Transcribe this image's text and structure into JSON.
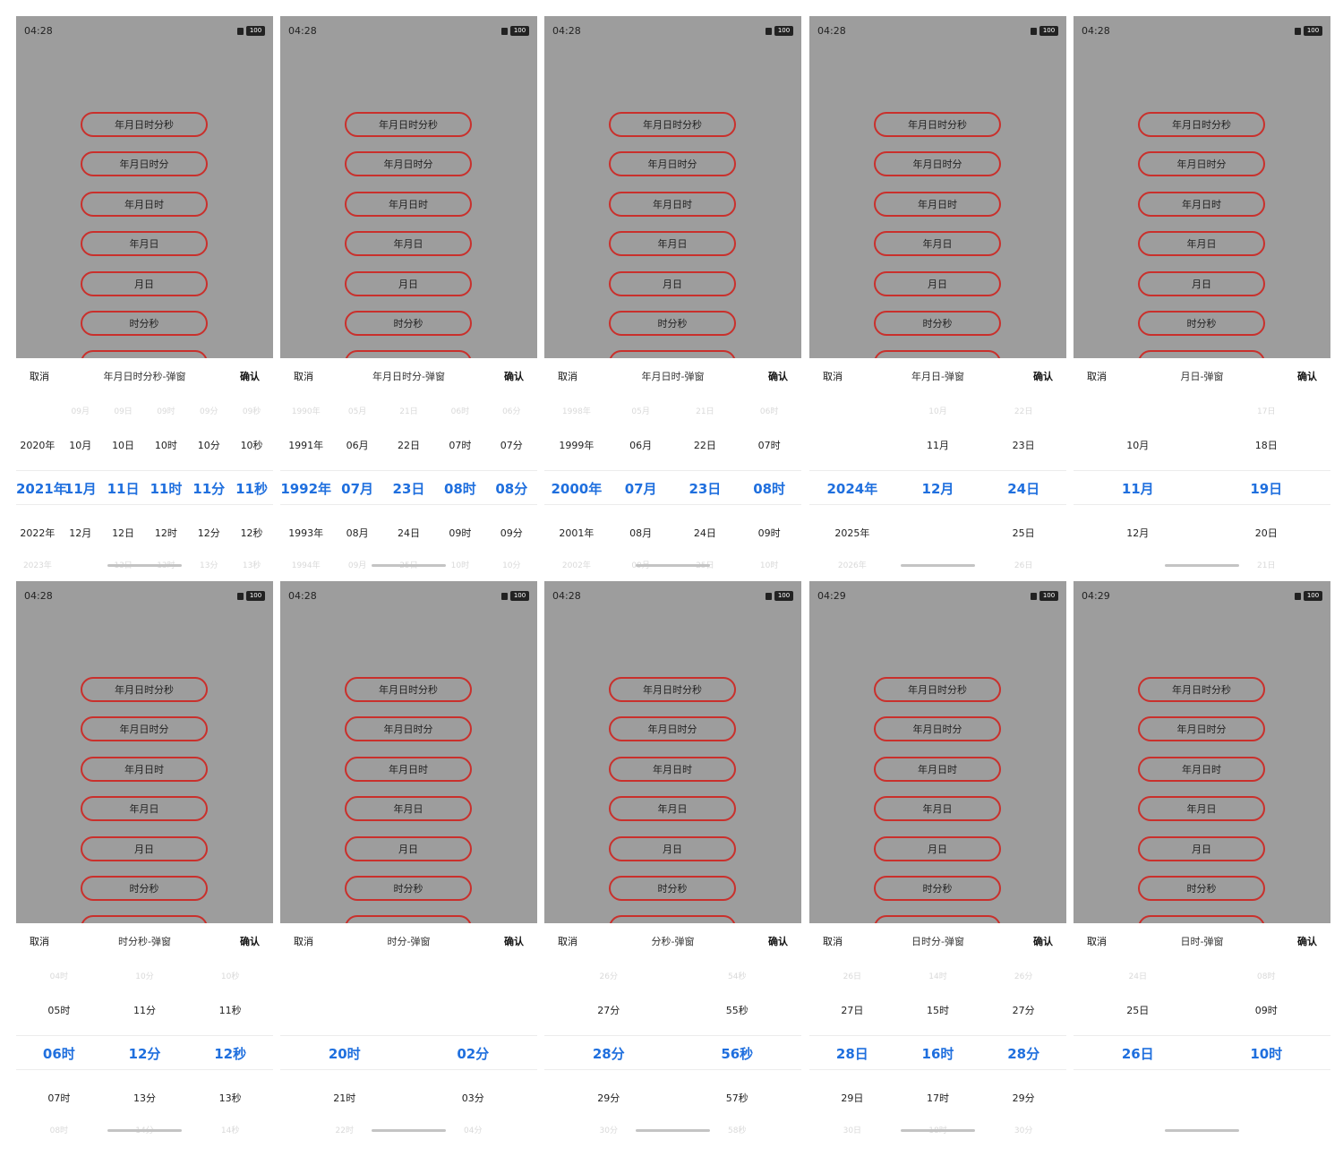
{
  "status_bar": {
    "sim_icon": "sim-icon",
    "battery": "100"
  },
  "menu_buttons": [
    "年月日时分秒",
    "年月日时分",
    "年月日时",
    "年月日",
    "月日",
    "时分秒",
    ""
  ],
  "header": {
    "cancel": "取消",
    "confirm": "确认"
  },
  "colors": {
    "accent": "#1f6fde",
    "button_border": "#c9302c",
    "overlay": "#9d9d9d"
  },
  "panels": [
    {
      "time": "04:28",
      "title": "年月日时分秒-弹窗",
      "columns": [
        [
          "",
          "2020年",
          "2021年",
          "2022年",
          "2023年"
        ],
        [
          "09月",
          "10月",
          "11月",
          "12月",
          ""
        ],
        [
          "09日",
          "10日",
          "11日",
          "12日",
          "13日"
        ],
        [
          "09时",
          "10时",
          "11时",
          "12时",
          "13时"
        ],
        [
          "09分",
          "10分",
          "11分",
          "12分",
          "13分"
        ],
        [
          "09秒",
          "10秒",
          "11秒",
          "12秒",
          "13秒"
        ]
      ]
    },
    {
      "time": "04:28",
      "title": "年月日时分-弹窗",
      "columns": [
        [
          "1990年",
          "1991年",
          "1992年",
          "1993年",
          "1994年"
        ],
        [
          "05月",
          "06月",
          "07月",
          "08月",
          "09月"
        ],
        [
          "21日",
          "22日",
          "23日",
          "24日",
          "25日"
        ],
        [
          "06时",
          "07时",
          "08时",
          "09时",
          "10时"
        ],
        [
          "06分",
          "07分",
          "08分",
          "09分",
          "10分"
        ]
      ]
    },
    {
      "time": "04:28",
      "title": "年月日时-弹窗",
      "columns": [
        [
          "1998年",
          "1999年",
          "2000年",
          "2001年",
          "2002年"
        ],
        [
          "05月",
          "06月",
          "07月",
          "08月",
          "09月"
        ],
        [
          "21日",
          "22日",
          "23日",
          "24日",
          "25日"
        ],
        [
          "06时",
          "07时",
          "08时",
          "09时",
          "10时"
        ]
      ]
    },
    {
      "time": "04:28",
      "title": "年月日-弹窗",
      "columns": [
        [
          "",
          "",
          "2024年",
          "2025年",
          "2026年"
        ],
        [
          "10月",
          "11月",
          "12月",
          "",
          ""
        ],
        [
          "22日",
          "23日",
          "24日",
          "25日",
          "26日"
        ]
      ]
    },
    {
      "time": "04:28",
      "title": "月日-弹窗",
      "columns": [
        [
          "",
          "10月",
          "11月",
          "12月",
          ""
        ],
        [
          "17日",
          "18日",
          "19日",
          "20日",
          "21日"
        ]
      ]
    },
    {
      "time": "04:28",
      "title": "时分秒-弹窗",
      "columns": [
        [
          "04时",
          "05时",
          "06时",
          "07时",
          "08时"
        ],
        [
          "10分",
          "11分",
          "12分",
          "13分",
          "14分"
        ],
        [
          "10秒",
          "11秒",
          "12秒",
          "13秒",
          "14秒"
        ]
      ]
    },
    {
      "time": "04:28",
      "title": "时分-弹窗",
      "columns": [
        [
          "",
          "",
          "20时",
          "21时",
          "22时"
        ],
        [
          "",
          "",
          "02分",
          "03分",
          "04分"
        ]
      ]
    },
    {
      "time": "04:28",
      "title": "分秒-弹窗",
      "columns": [
        [
          "26分",
          "27分",
          "28分",
          "29分",
          "30分"
        ],
        [
          "54秒",
          "55秒",
          "56秒",
          "57秒",
          "58秒"
        ]
      ]
    },
    {
      "time": "04:29",
      "title": "日时分-弹窗",
      "columns": [
        [
          "26日",
          "27日",
          "28日",
          "29日",
          "30日"
        ],
        [
          "14时",
          "15时",
          "16时",
          "17时",
          "18时"
        ],
        [
          "26分",
          "27分",
          "28分",
          "29分",
          "30分"
        ]
      ]
    },
    {
      "time": "04:29",
      "title": "日时-弹窗",
      "columns": [
        [
          "24日",
          "25日",
          "26日",
          "",
          ""
        ],
        [
          "08时",
          "09时",
          "10时",
          "",
          ""
        ]
      ]
    }
  ]
}
